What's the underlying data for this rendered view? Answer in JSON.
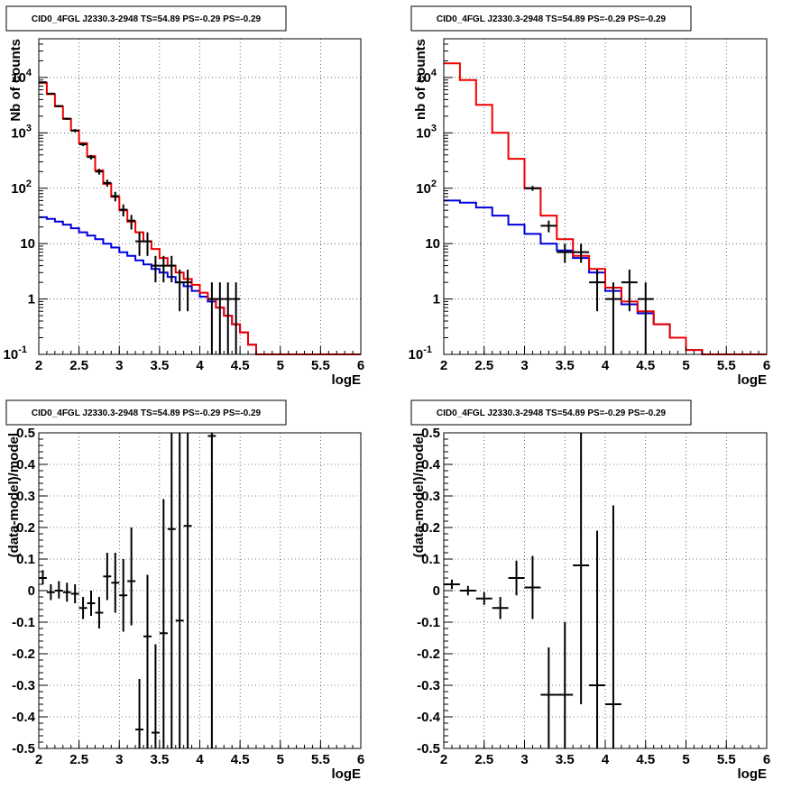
{
  "chart_data": [
    {
      "type": "histogram-step",
      "title": "CID0_4FGL J2330.3-2948 TS=54.89 PS=-0.29 PS=-0.29",
      "xlabel": "logE",
      "ylabel": "Nb of counts",
      "xlim": [
        2,
        6
      ],
      "ylim": [
        0.1,
        50000
      ],
      "yscale": "log",
      "grid": true,
      "x_ticks": [
        "2",
        "2.5",
        "3",
        "3.5",
        "4",
        "4.5",
        "5",
        "5.5",
        "6"
      ],
      "y_ticks": [
        "10^-1",
        "1",
        "10",
        "10^2",
        "10^3",
        "10^4"
      ],
      "bin_edges": [
        2.0,
        2.1,
        2.2,
        2.3,
        2.4,
        2.5,
        2.6,
        2.7,
        2.8,
        2.9,
        3.0,
        3.1,
        3.2,
        3.3,
        3.4,
        3.5,
        3.6,
        3.7,
        3.8,
        3.9,
        4.0,
        4.1,
        4.2,
        4.3,
        4.4,
        4.5,
        4.6,
        4.7,
        4.8,
        4.9,
        5.0,
        5.1,
        5.2,
        5.3,
        5.4,
        5.5,
        5.6,
        5.7,
        5.8,
        5.9,
        6.0
      ],
      "series": [
        {
          "color": "#ee0000",
          "values": [
            8000,
            5000,
            3000,
            1800,
            1100,
            650,
            380,
            210,
            120,
            70,
            40,
            25,
            16,
            11,
            8,
            5.5,
            4,
            3,
            2.3,
            1.8,
            1.3,
            1.0,
            0.7,
            0.5,
            0.35,
            0.25,
            0.15,
            0.1,
            0.1,
            0.1,
            0.1,
            0.1,
            0.1,
            0.1,
            0.1,
            0.1,
            0.1,
            0.1,
            0.1,
            0.1
          ]
        },
        {
          "color": "#0000dd",
          "values": [
            30,
            28,
            25,
            22,
            19,
            16,
            14,
            12,
            10,
            8.5,
            7,
            6,
            5,
            4.2,
            3.5,
            3,
            2.5,
            2,
            1.7,
            1.4,
            1.1,
            0.9,
            0.7,
            0.5,
            0.35,
            0.25,
            0.15,
            0.1,
            0.1,
            0.1,
            0.1,
            0.1,
            0.1,
            0.1,
            0.1,
            0.1,
            0.1,
            0.1,
            0.1,
            0.1
          ]
        }
      ],
      "points": [
        {
          "x": 2.05,
          "y": 8200,
          "xerr": 0.05,
          "ylo": 8020,
          "yhi": 8380
        },
        {
          "x": 2.15,
          "y": 5100,
          "xerr": 0.05,
          "ylo": 4960,
          "yhi": 5240
        },
        {
          "x": 2.25,
          "y": 3050,
          "xerr": 0.05,
          "ylo": 2940,
          "yhi": 3160
        },
        {
          "x": 2.35,
          "y": 1800,
          "xerr": 0.05,
          "ylo": 1720,
          "yhi": 1880
        },
        {
          "x": 2.45,
          "y": 1100,
          "xerr": 0.05,
          "ylo": 1030,
          "yhi": 1170
        },
        {
          "x": 2.55,
          "y": 620,
          "xerr": 0.05,
          "ylo": 575,
          "yhi": 665
        },
        {
          "x": 2.65,
          "y": 365,
          "xerr": 0.05,
          "ylo": 330,
          "yhi": 400
        },
        {
          "x": 2.75,
          "y": 200,
          "xerr": 0.05,
          "ylo": 176,
          "yhi": 224
        },
        {
          "x": 2.85,
          "y": 125,
          "xerr": 0.05,
          "ylo": 107,
          "yhi": 143
        },
        {
          "x": 2.95,
          "y": 72,
          "xerr": 0.05,
          "ylo": 58,
          "yhi": 86
        },
        {
          "x": 3.05,
          "y": 41,
          "xerr": 0.05,
          "ylo": 31,
          "yhi": 51
        },
        {
          "x": 3.15,
          "y": 26,
          "xerr": 0.05,
          "ylo": 18,
          "yhi": 33
        },
        {
          "x": 3.25,
          "y": 11,
          "xerr": 0.05,
          "ylo": 6,
          "yhi": 16
        },
        {
          "x": 3.35,
          "y": 11,
          "xerr": 0.05,
          "ylo": 6,
          "yhi": 16
        },
        {
          "x": 3.45,
          "y": 4,
          "xerr": 0.05,
          "ylo": 2,
          "yhi": 6
        },
        {
          "x": 3.55,
          "y": 4,
          "xerr": 0.05,
          "ylo": 2,
          "yhi": 6
        },
        {
          "x": 3.65,
          "y": 4,
          "xerr": 0.05,
          "ylo": 2,
          "yhi": 6
        },
        {
          "x": 3.75,
          "y": 2,
          "xerr": 0.05,
          "ylo": 0.6,
          "yhi": 3.4
        },
        {
          "x": 3.85,
          "y": 2,
          "xerr": 0.05,
          "ylo": 0.6,
          "yhi": 3.4
        },
        {
          "x": 4.15,
          "y": 1,
          "xerr": 0.05,
          "ylo": 0.1,
          "yhi": 2
        },
        {
          "x": 4.25,
          "y": 1,
          "xerr": 0.05,
          "ylo": 0.1,
          "yhi": 2
        },
        {
          "x": 4.35,
          "y": 1,
          "xerr": 0.05,
          "ylo": 0.1,
          "yhi": 2
        },
        {
          "x": 4.45,
          "y": 1,
          "xerr": 0.05,
          "ylo": 0.1,
          "yhi": 2
        }
      ]
    },
    {
      "type": "histogram-step",
      "title": "CID0_4FGL J2330.3-2948 TS=54.89 PS=-0.29 PS=-0.29",
      "xlabel": "logE",
      "ylabel": "nb of counts",
      "xlim": [
        2,
        6
      ],
      "ylim": [
        0.1,
        50000
      ],
      "yscale": "log",
      "grid": true,
      "x_ticks": [
        "2",
        "2.5",
        "3",
        "3.5",
        "4",
        "4.5",
        "5",
        "5.5",
        "6"
      ],
      "y_ticks": [
        "10^-1",
        "1",
        "10",
        "10^2",
        "10^3",
        "10^4"
      ],
      "bin_edges": [
        2.0,
        2.2,
        2.4,
        2.6,
        2.8,
        3.0,
        3.2,
        3.4,
        3.6,
        3.8,
        4.0,
        4.2,
        4.4,
        4.6,
        4.8,
        5.0,
        5.2,
        5.4,
        5.6,
        5.8,
        6.0
      ],
      "series": [
        {
          "color": "#ee0000",
          "values": [
            18000,
            9000,
            3200,
            1000,
            340,
            100,
            32,
            12,
            6,
            3.5,
            1.6,
            0.9,
            0.6,
            0.35,
            0.2,
            0.12,
            0.1,
            0.1,
            0.1,
            0.1
          ]
        },
        {
          "color": "#0000dd",
          "values": [
            60,
            55,
            45,
            32,
            22,
            15,
            10,
            7.5,
            5.5,
            3,
            1.4,
            0.8,
            0.55,
            0.35,
            0.2,
            0.12,
            0.1,
            0.1,
            0.1,
            0.1
          ]
        }
      ],
      "points": [
        {
          "x": 3.1,
          "y": 100,
          "xerr": 0.1,
          "ylo": 90,
          "yhi": 110
        },
        {
          "x": 3.3,
          "y": 21,
          "xerr": 0.1,
          "ylo": 16,
          "yhi": 26
        },
        {
          "x": 3.5,
          "y": 7,
          "xerr": 0.1,
          "ylo": 4.5,
          "yhi": 10
        },
        {
          "x": 3.7,
          "y": 7,
          "xerr": 0.1,
          "ylo": 4.5,
          "yhi": 10
        },
        {
          "x": 3.9,
          "y": 2,
          "xerr": 0.1,
          "ylo": 0.6,
          "yhi": 3.4
        },
        {
          "x": 4.1,
          "y": 1,
          "xerr": 0.1,
          "ylo": 0.1,
          "yhi": 2
        },
        {
          "x": 4.3,
          "y": 2,
          "xerr": 0.1,
          "ylo": 0.6,
          "yhi": 3.4
        },
        {
          "x": 4.5,
          "y": 1,
          "xerr": 0.1,
          "ylo": 0.1,
          "yhi": 2
        }
      ]
    },
    {
      "type": "scatter-errorbar",
      "title": "CID0_4FGL J2330.3-2948 TS=54.89 PS=-0.29 PS=-0.29",
      "xlabel": "logE",
      "ylabel": "(data-model)/model",
      "xlim": [
        2,
        6
      ],
      "ylim": [
        -0.5,
        0.5
      ],
      "grid": true,
      "x_ticks": [
        "2",
        "2.5",
        "3",
        "3.5",
        "4",
        "4.5",
        "5",
        "5.5",
        "6"
      ],
      "y_ticks": [
        "-0.5",
        "-0.4",
        "-0.3",
        "-0.2",
        "-0.1",
        "0",
        "0.1",
        "0.2",
        "0.3",
        "0.4",
        "0.5"
      ],
      "points": [
        {
          "x": 2.05,
          "y": 0.04,
          "xerr": 0.05,
          "ylo": 0.02,
          "yhi": 0.065
        },
        {
          "x": 2.15,
          "y": -0.005,
          "xerr": 0.05,
          "ylo": -0.03,
          "yhi": 0.02
        },
        {
          "x": 2.25,
          "y": 0.0,
          "xerr": 0.05,
          "ylo": -0.025,
          "yhi": 0.03
        },
        {
          "x": 2.35,
          "y": -0.005,
          "xerr": 0.05,
          "ylo": -0.035,
          "yhi": 0.025
        },
        {
          "x": 2.45,
          "y": -0.01,
          "xerr": 0.05,
          "ylo": -0.04,
          "yhi": 0.02
        },
        {
          "x": 2.55,
          "y": -0.055,
          "xerr": 0.05,
          "ylo": -0.09,
          "yhi": -0.02
        },
        {
          "x": 2.65,
          "y": -0.04,
          "xerr": 0.05,
          "ylo": -0.08,
          "yhi": 0.0
        },
        {
          "x": 2.75,
          "y": -0.07,
          "xerr": 0.05,
          "ylo": -0.12,
          "yhi": -0.02
        },
        {
          "x": 2.85,
          "y": 0.045,
          "xerr": 0.05,
          "ylo": -0.03,
          "yhi": 0.12
        },
        {
          "x": 2.95,
          "y": 0.025,
          "xerr": 0.05,
          "ylo": -0.07,
          "yhi": 0.12
        },
        {
          "x": 3.05,
          "y": -0.015,
          "xerr": 0.05,
          "ylo": -0.13,
          "yhi": 0.1
        },
        {
          "x": 3.15,
          "y": 0.03,
          "xerr": 0.05,
          "ylo": -0.11,
          "yhi": 0.2
        },
        {
          "x": 3.25,
          "y": -0.44,
          "xerr": 0.05,
          "ylo": -0.5,
          "yhi": -0.28
        },
        {
          "x": 3.35,
          "y": -0.145,
          "xerr": 0.05,
          "ylo": -0.5,
          "yhi": 0.05
        },
        {
          "x": 3.45,
          "y": -0.45,
          "xerr": 0.05,
          "ylo": -0.5,
          "yhi": -0.17
        },
        {
          "x": 3.55,
          "y": -0.135,
          "xerr": 0.05,
          "ylo": -0.5,
          "yhi": 0.29
        },
        {
          "x": 3.65,
          "y": 0.195,
          "xerr": 0.05,
          "ylo": -0.5,
          "yhi": 0.5
        },
        {
          "x": 3.75,
          "y": -0.095,
          "xerr": 0.05,
          "ylo": -0.5,
          "yhi": 0.5
        },
        {
          "x": 3.85,
          "y": 0.205,
          "xerr": 0.05,
          "ylo": -0.5,
          "yhi": 0.5
        },
        {
          "x": 4.15,
          "y": 0.49,
          "xerr": 0.05,
          "ylo": -0.5,
          "yhi": 0.5
        }
      ]
    },
    {
      "type": "scatter-errorbar",
      "title": "CID0_4FGL J2330.3-2948 TS=54.89 PS=-0.29 PS=-0.29",
      "xlabel": "logE",
      "ylabel": "(data-model)/model",
      "xlim": [
        2,
        6
      ],
      "ylim": [
        -0.5,
        0.5
      ],
      "grid": true,
      "x_ticks": [
        "2",
        "2.5",
        "3",
        "3.5",
        "4",
        "4.5",
        "5",
        "5.5",
        "6"
      ],
      "y_ticks": [
        "-0.5",
        "-0.4",
        "-0.3",
        "-0.2",
        "-0.1",
        "0",
        "0.1",
        "0.2",
        "0.3",
        "0.4",
        "0.5"
      ],
      "points": [
        {
          "x": 2.1,
          "y": 0.02,
          "xerr": 0.1,
          "ylo": 0.005,
          "yhi": 0.035
        },
        {
          "x": 2.3,
          "y": 0.0,
          "xerr": 0.1,
          "ylo": -0.015,
          "yhi": 0.015
        },
        {
          "x": 2.5,
          "y": -0.025,
          "xerr": 0.1,
          "ylo": -0.045,
          "yhi": -0.005
        },
        {
          "x": 2.7,
          "y": -0.055,
          "xerr": 0.1,
          "ylo": -0.09,
          "yhi": -0.02
        },
        {
          "x": 2.9,
          "y": 0.04,
          "xerr": 0.1,
          "ylo": -0.015,
          "yhi": 0.095
        },
        {
          "x": 3.1,
          "y": 0.01,
          "xerr": 0.1,
          "ylo": -0.09,
          "yhi": 0.11
        },
        {
          "x": 3.3,
          "y": -0.33,
          "xerr": 0.1,
          "ylo": -0.5,
          "yhi": -0.18
        },
        {
          "x": 3.5,
          "y": -0.33,
          "xerr": 0.1,
          "ylo": -0.5,
          "yhi": -0.1
        },
        {
          "x": 3.7,
          "y": 0.08,
          "xerr": 0.1,
          "ylo": -0.36,
          "yhi": 0.5
        },
        {
          "x": 3.9,
          "y": -0.3,
          "xerr": 0.1,
          "ylo": -0.5,
          "yhi": 0.19
        },
        {
          "x": 4.1,
          "y": -0.36,
          "xerr": 0.1,
          "ylo": -0.5,
          "yhi": 0.27
        }
      ]
    }
  ]
}
